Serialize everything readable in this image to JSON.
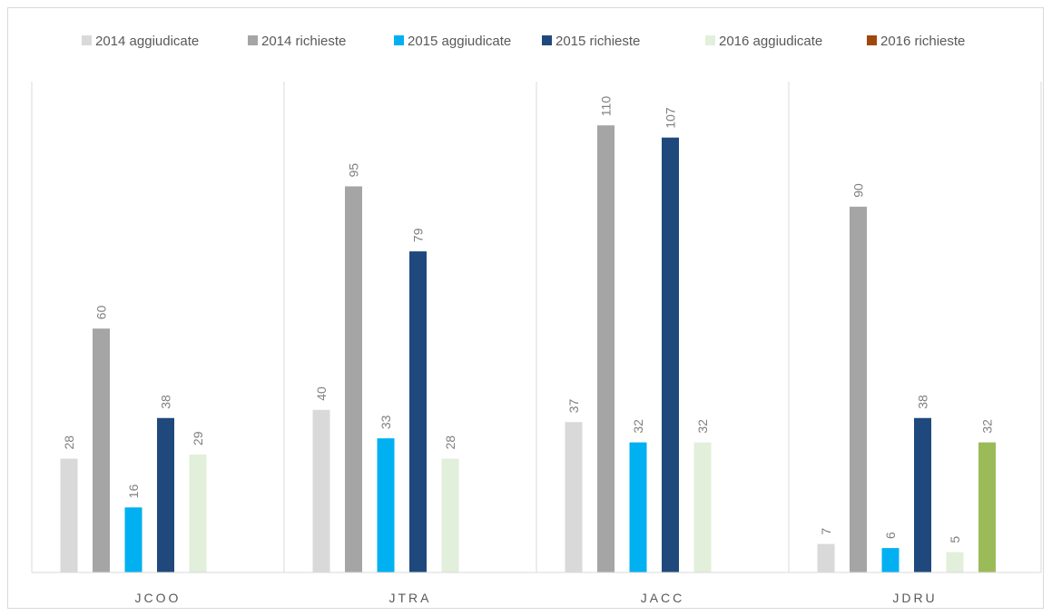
{
  "chart_data": {
    "type": "bar",
    "categories": [
      "JCOO",
      "JTRA",
      "JACC",
      "JDRU"
    ],
    "series": [
      {
        "name": "2014 aggiudicate",
        "color": "#d9d9d9",
        "values": [
          28,
          40,
          37,
          7
        ]
      },
      {
        "name": "2014 richieste",
        "color": "#a5a5a5",
        "values": [
          60,
          95,
          110,
          90
        ]
      },
      {
        "name": "2015 aggiudicate",
        "color": "#00b0f0",
        "values": [
          16,
          33,
          32,
          6
        ]
      },
      {
        "name": "2015 richieste",
        "color": "#1f497d",
        "values": [
          38,
          79,
          107,
          38
        ]
      },
      {
        "name": "2016 aggiudicate",
        "color": "#e2efda",
        "values": [
          29,
          28,
          32,
          5
        ]
      },
      {
        "name": "2016 richieste",
        "color": "#9e480e",
        "values": [
          null,
          null,
          null,
          32
        ]
      }
    ],
    "point_colors": {
      "2016 richieste": {
        "JDRU": "#9bbb59"
      }
    },
    "ylim": [
      0,
      110
    ],
    "grid": false,
    "legend": "top",
    "data_labels": true
  }
}
